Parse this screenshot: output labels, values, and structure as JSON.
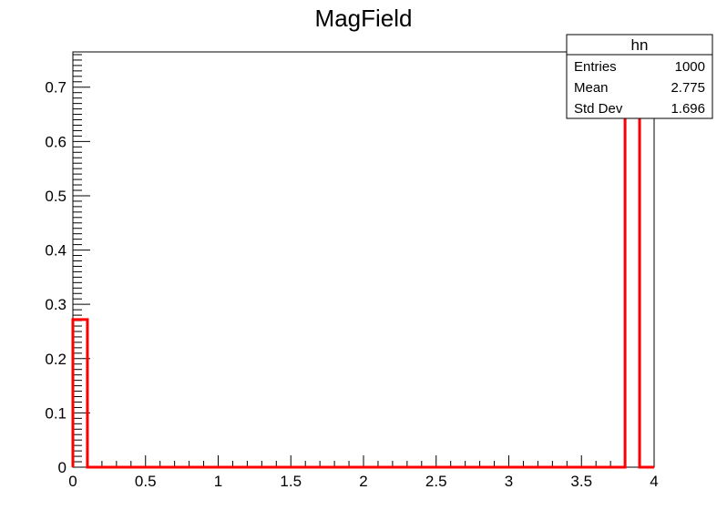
{
  "chart_data": {
    "type": "bar",
    "title": "MagField",
    "xlabel": "",
    "ylabel": "",
    "xlim": [
      0,
      4
    ],
    "ylim": [
      0,
      0.765
    ],
    "x_ticks": [
      "0",
      "0.5",
      "1",
      "1.5",
      "2",
      "2.5",
      "3",
      "3.5",
      "4"
    ],
    "y_ticks": [
      "0",
      "0.1",
      "0.2",
      "0.3",
      "0.4",
      "0.5",
      "0.6",
      "0.7"
    ],
    "bin_width": 0.1,
    "bin_edges": [
      0,
      0.1,
      0.2,
      0.3,
      0.4,
      0.5,
      0.6,
      0.7,
      0.8,
      0.9,
      1.0,
      1.1,
      1.2,
      1.3,
      1.4,
      1.5,
      1.6,
      1.7,
      1.8,
      1.9,
      2.0,
      2.1,
      2.2,
      2.3,
      2.4,
      2.5,
      2.6,
      2.7,
      2.8,
      2.9,
      3.0,
      3.1,
      3.2,
      3.3,
      3.4,
      3.5,
      3.6,
      3.7,
      3.8,
      3.9,
      4.0
    ],
    "values": [
      0.272,
      0,
      0,
      0,
      0,
      0,
      0,
      0,
      0,
      0,
      0,
      0,
      0,
      0,
      0,
      0,
      0,
      0,
      0,
      0,
      0,
      0,
      0,
      0,
      0,
      0,
      0,
      0,
      0,
      0,
      0,
      0,
      0,
      0,
      0,
      0,
      0,
      0,
      0.728,
      0
    ],
    "line_color": "#ff0000",
    "grid": false,
    "stats_box": {
      "name": "hn",
      "rows": [
        {
          "label": "Entries",
          "value": "1000"
        },
        {
          "label": "Mean",
          "value": "2.775"
        },
        {
          "label": "Std Dev",
          "value": "1.696"
        }
      ]
    }
  }
}
